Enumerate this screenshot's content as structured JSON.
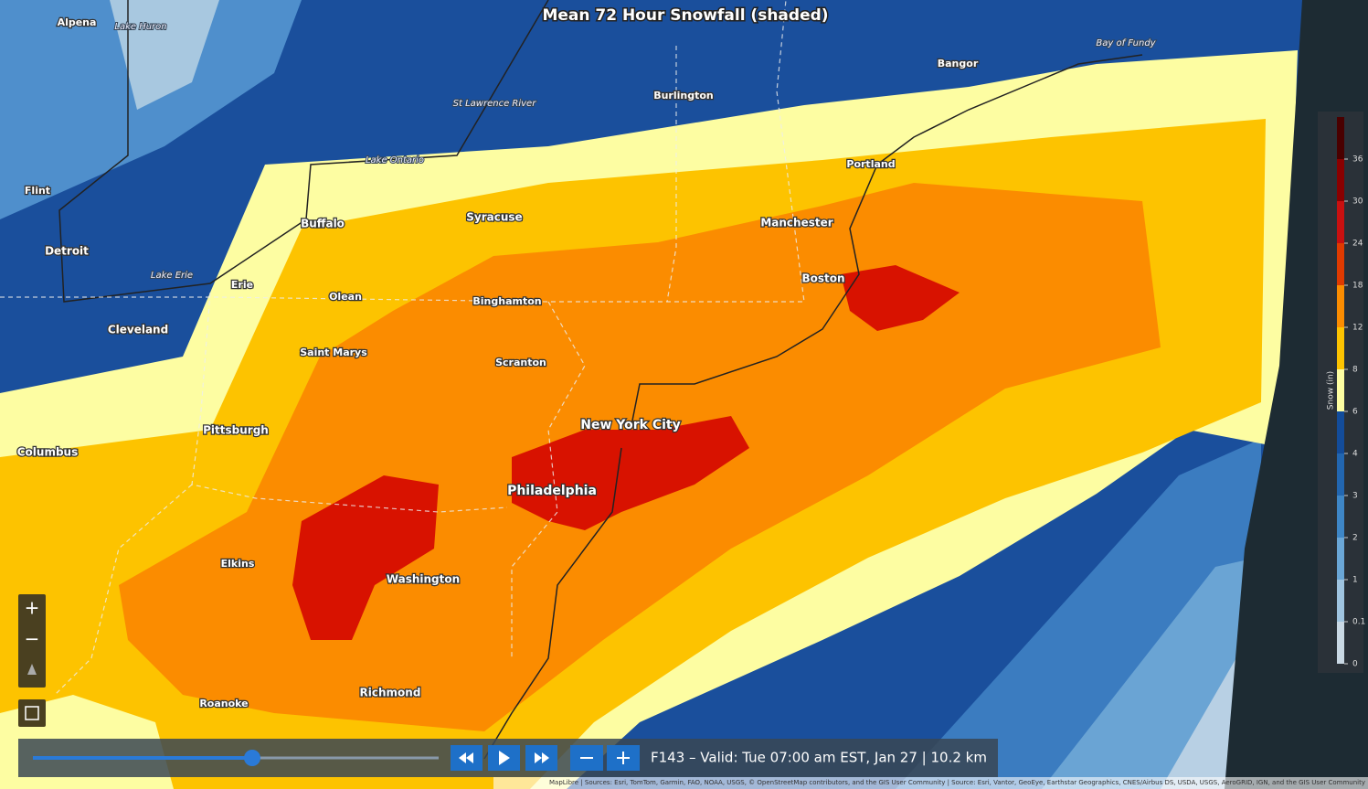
{
  "title": "Mean 72 Hour Snowfall (shaded)",
  "places": [
    "Alpena",
    "Lake Huron",
    "Bay of Fundy",
    "Bangor",
    "St Lawrence River",
    "Burlington",
    "Lake Ontario",
    "Portland",
    "Flint",
    "Buffalo",
    "Syracuse",
    "Manchester",
    "Detroit",
    "Lake Erie",
    "Erie",
    "Olean",
    "Binghamton",
    "Boston",
    "Cleveland",
    "Saint Marys",
    "Scranton",
    "New York City",
    "Pittsburgh",
    "Columbus",
    "Philadelphia",
    "Elkins",
    "Washington",
    "Richmond",
    "Roanoke"
  ],
  "legend": {
    "title": "Snow (in)",
    "ticks": [
      0,
      0.1,
      1,
      2,
      3,
      4,
      6,
      8,
      12,
      18,
      24,
      30,
      36
    ],
    "colors": [
      "#c9d8e4",
      "#9fc4e0",
      "#6aa6d6",
      "#3e86c6",
      "#2266b0",
      "#134c9a",
      "#fdfda2",
      "#fdc300",
      "#fb8c00",
      "#e03a00",
      "#c81010",
      "#8a0000",
      "#4a0000"
    ]
  },
  "controls": {
    "zoom_in": "+",
    "zoom_out": "−",
    "status": "F143 – Valid: Tue 07:00 am EST, Jan 27 | 10.2 km",
    "attribution": "MapLibre | Sources: Esri, TomTom, Garmin, FAO, NOAA, USGS, © OpenStreetMap contributors, and the GIS User Community | Source: Esri, Vantor, GeoEye, Earthstar Geographics, CNES/Airbus DS, USDA, USGS, AeroGRID, IGN, and the GIS User Community"
  }
}
